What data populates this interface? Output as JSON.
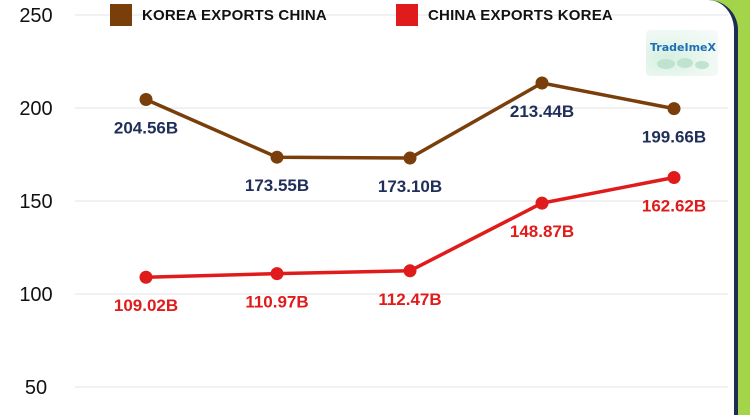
{
  "brand": {
    "logo_text": "TradeImeX"
  },
  "colors": {
    "korea_exports_china": "#7a3e0a",
    "china_exports_korea": "#e01b1b",
    "label_navy": "#1f2f5a",
    "label_red": "#e01b1b",
    "grid": "#e3e3e3",
    "frame": "#1d2b55"
  },
  "chart_data": {
    "type": "line",
    "title": "",
    "xlabel": "",
    "ylabel": "",
    "ylim": [
      40,
      255
    ],
    "yticks": [
      50,
      100,
      150,
      200,
      250
    ],
    "grid": true,
    "legend_position": "top",
    "series": [
      {
        "name": "KOREA EXPORTS CHINA",
        "values": [
          204.56,
          173.55,
          173.1,
          213.44,
          199.66
        ],
        "labels": [
          "204.56B",
          "173.55B",
          "173.10B",
          "213.44B",
          "199.66B"
        ],
        "label_position": [
          "below",
          "below",
          "below",
          "below",
          "below"
        ]
      },
      {
        "name": "CHINA EXPORTS KOREA",
        "values": [
          109.02,
          110.97,
          112.47,
          148.87,
          162.62
        ],
        "labels": [
          "109.02B",
          "110.97B",
          "112.47B",
          "148.87B",
          "162.62B"
        ],
        "label_position": [
          "below",
          "below",
          "below",
          "below",
          "below"
        ]
      }
    ]
  }
}
